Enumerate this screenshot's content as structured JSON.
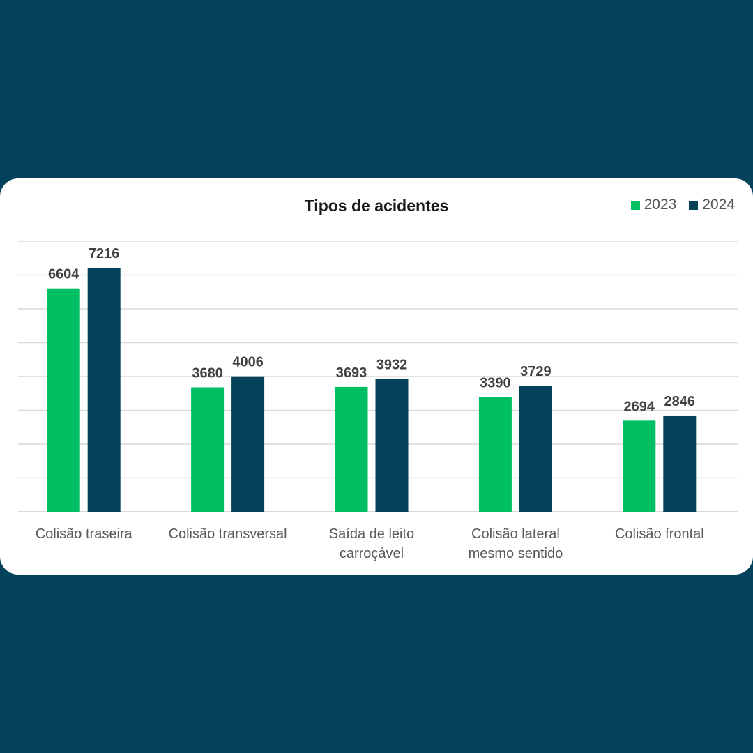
{
  "chart_data": {
    "type": "bar",
    "title": "Tipos de acidentes",
    "categories": [
      [
        "Colisão traseira"
      ],
      [
        "Colisão transversal"
      ],
      [
        "Saída de leito",
        "carroçável"
      ],
      [
        "Colisão lateral",
        "mesmo sentido"
      ],
      [
        "Colisão frontal"
      ]
    ],
    "series": [
      {
        "name": "2023",
        "color": "#00bf63",
        "values": [
          6604,
          3680,
          3693,
          3390,
          2694
        ]
      },
      {
        "name": "2024",
        "color": "#03425a",
        "values": [
          7216,
          4006,
          3932,
          3729,
          2846
        ]
      }
    ],
    "ylim": [
      0,
      8000
    ],
    "grid": true,
    "legend_position": "top-right",
    "value_labels": true
  },
  "colors": {
    "page_background": "#03425a",
    "card_background": "#ffffff",
    "gridline": "#d9d9d9",
    "value_label": "#404040",
    "axis_label": "#595959"
  }
}
